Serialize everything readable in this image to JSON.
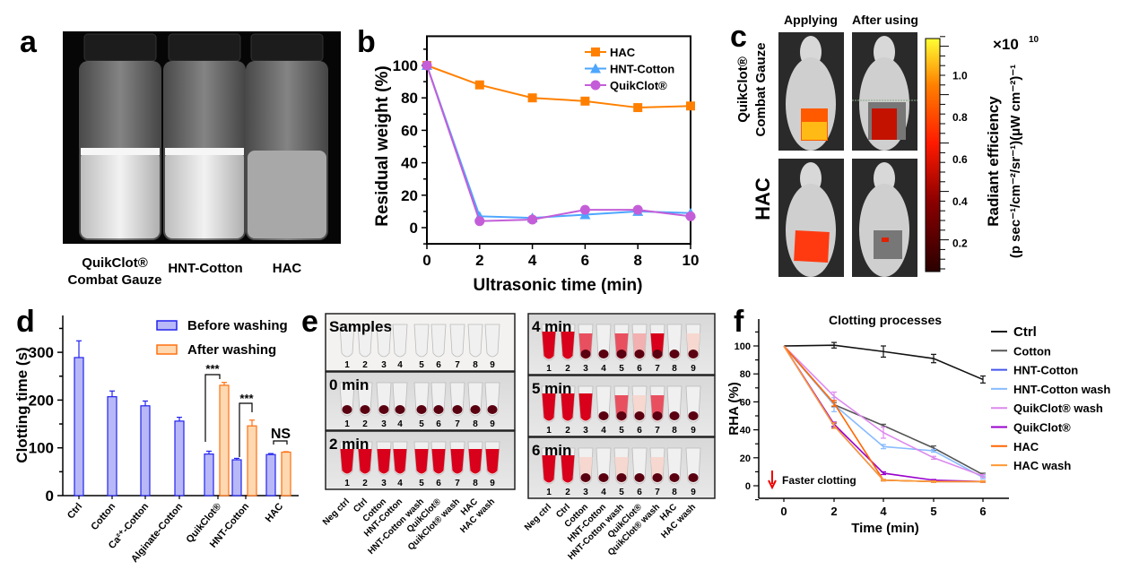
{
  "panels": {
    "a": {
      "label": "a",
      "captions": [
        "QuikClot®",
        "Combat Gauze",
        "HNT-Cotton",
        "HAC"
      ]
    },
    "c": {
      "label": "c",
      "columns": [
        "Applying",
        "After using"
      ],
      "rows": [
        "QuikClot®",
        "Combat Gauze",
        "HAC"
      ],
      "colorbar": {
        "ticks": [
          "1.0",
          "0.8",
          "0.6",
          "0.4",
          "0.2"
        ],
        "multiplier": "×10",
        "multiplier_exp": "10",
        "title": "Radiant efficiency",
        "unit": "(p sec⁻¹/cm⁻²/sr⁻¹)(μW cm⁻²)⁻¹",
        "colors": [
          "#2a0000",
          "#8b0000",
          "#ff1a00",
          "#ff8000",
          "#ffff33"
        ]
      }
    },
    "e": {
      "label": "e",
      "rows_left": [
        "Samples",
        "0 min",
        "2 min"
      ],
      "rows_right": [
        "4 min",
        "5 min",
        "6 min"
      ],
      "tube_numbers": [
        "1",
        "2",
        "3",
        "4",
        "5",
        "6",
        "7",
        "8",
        "9"
      ],
      "tube_labels": [
        "Neg ctrl",
        "Ctrl",
        "Cotton",
        "HNT-Cotton",
        "HNT-Cotton wash",
        "QuikClot®",
        "QuikClot® wash",
        "HAC",
        "HAC wash"
      ]
    }
  },
  "chart_data": [
    {
      "panel": "b",
      "type": "line",
      "xlabel": "Ultrasonic time (min)",
      "ylabel": "Residual weight (%)",
      "x": [
        0,
        2,
        4,
        6,
        8,
        10
      ],
      "xlim": [
        0,
        10
      ],
      "ylim": [
        -10,
        118
      ],
      "xticks": [
        "0",
        "2",
        "4",
        "6",
        "8",
        "10"
      ],
      "yticks": [
        "0",
        "20",
        "40",
        "60",
        "80",
        "100"
      ],
      "legend": "top-right",
      "series": [
        {
          "name": "HAC",
          "values": [
            100,
            88,
            80,
            78,
            74,
            75
          ],
          "color": "#ff8000",
          "marker": "square"
        },
        {
          "name": "HNT-Cotton",
          "values": [
            100,
            7,
            6,
            8,
            10,
            9
          ],
          "color": "#4da6ff",
          "marker": "triangle"
        },
        {
          "name": "QuikClot®",
          "values": [
            100,
            4,
            5,
            11,
            11,
            7
          ],
          "color": "#c45ed8",
          "marker": "circle"
        }
      ]
    },
    {
      "panel": "d",
      "type": "bar",
      "ylabel": "Clotting time (s)",
      "ylim": [
        0,
        360
      ],
      "yticks": [
        "0",
        "100",
        "200",
        "300"
      ],
      "categories": [
        "Ctrl",
        "Cotton",
        "Ca²⁺-Cotton",
        "Alginate-Cotton",
        "QuikClot®",
        "HNT-Cotton",
        "HAC"
      ],
      "legend": "top-right",
      "series": [
        {
          "name": "Before washing",
          "values": [
            289,
            207,
            188,
            156,
            87,
            75,
            86
          ],
          "errors": [
            35,
            12,
            10,
            8,
            6,
            3,
            2
          ],
          "fill": "#b8b8f8",
          "stroke": "#2222ee"
        },
        {
          "name": "After washing",
          "values": [
            null,
            null,
            null,
            null,
            231,
            146,
            91
          ],
          "errors": [
            null,
            null,
            null,
            null,
            6,
            12,
            1
          ],
          "fill": "#fdd8b0",
          "stroke": "#ff7010"
        }
      ],
      "annotations": [
        {
          "category": "QuikClot®",
          "text": "***"
        },
        {
          "category": "HNT-Cotton",
          "text": "***"
        },
        {
          "category": "HAC",
          "text": "NS"
        }
      ]
    },
    {
      "panel": "f",
      "type": "line",
      "title": "Clotting processes",
      "xlabel": "Time (min)",
      "ylabel": "RHA (%)",
      "categories": [
        "0",
        "2",
        "4",
        "5",
        "6"
      ],
      "ylim": [
        -8,
        115
      ],
      "yticks": [
        "0",
        "20",
        "40",
        "60",
        "80",
        "100"
      ],
      "legend": "right",
      "annotation": "Faster clotting",
      "series": [
        {
          "name": "Ctrl",
          "values": [
            100,
            100.5,
            96,
            91,
            76
          ],
          "errors": [
            0,
            2,
            4,
            3,
            2.5
          ],
          "color": "#111111"
        },
        {
          "name": "Cotton",
          "values": [
            100,
            58,
            43,
            27,
            8
          ],
          "errors": [
            0,
            1.5,
            1,
            1.5,
            1
          ],
          "color": "#555555"
        },
        {
          "name": "HNT-Cotton",
          "values": [
            100,
            43,
            4,
            3,
            3
          ],
          "errors": [
            0,
            1.5,
            0.5,
            0.5,
            0.5
          ],
          "color": "#4455ee"
        },
        {
          "name": "HNT-Cotton wash",
          "values": [
            100,
            58,
            28,
            25,
            6
          ],
          "errors": [
            0,
            5,
            1.5,
            1,
            1
          ],
          "color": "#88bbff"
        },
        {
          "name": "QuikClot® wash",
          "values": [
            100,
            64,
            38,
            20,
            7
          ],
          "errors": [
            0,
            3,
            4,
            1,
            1
          ],
          "color": "#dd88ee"
        },
        {
          "name": "QuikClot®",
          "values": [
            100,
            44,
            9,
            4,
            3
          ],
          "errors": [
            0,
            1.5,
            1,
            0.5,
            0.5
          ],
          "color": "#9900cc"
        },
        {
          "name": "HAC",
          "values": [
            100,
            59,
            4,
            3,
            3
          ],
          "errors": [
            0,
            2,
            0.5,
            0.5,
            0.5
          ],
          "color": "#ff6600"
        },
        {
          "name": "HAC wash",
          "values": [
            100,
            43,
            4,
            3,
            3
          ],
          "errors": [
            0,
            2,
            0.5,
            0.5,
            0.5
          ],
          "color": "#ff9933"
        }
      ]
    }
  ]
}
